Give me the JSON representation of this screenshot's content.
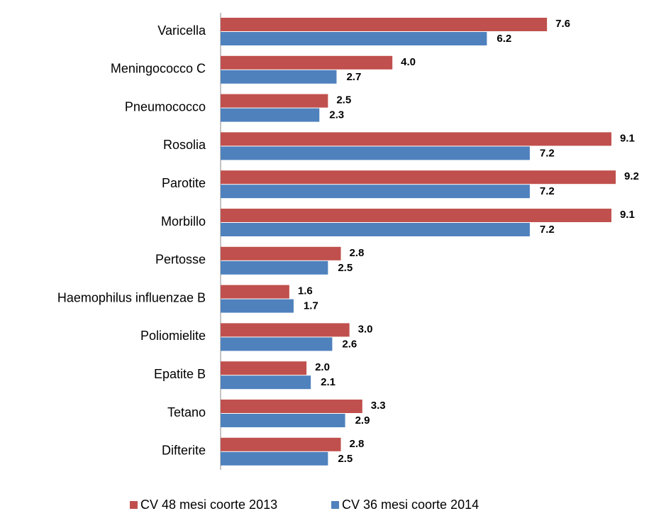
{
  "chart_data": {
    "type": "bar",
    "orientation": "horizontal",
    "categories": [
      "Varicella",
      "Meningococco C",
      "Pneumococco",
      "Rosolia",
      "Parotite",
      "Morbillo",
      "Pertosse",
      "Haemophilus influenzae B",
      "Poliomielite",
      "Epatite B",
      "Tetano",
      "Difterite"
    ],
    "series": [
      {
        "name": "CV 48 mesi coorte 2013",
        "color": "#c0504d",
        "values": [
          7.6,
          4.0,
          2.5,
          9.1,
          9.2,
          9.1,
          2.8,
          1.6,
          3.0,
          2.0,
          3.3,
          2.8
        ],
        "value_labels": [
          "7.6",
          "4.0",
          "2.5",
          "9.1",
          "9.2",
          "9.1",
          "2.8",
          "1.6",
          "3.0",
          "2.0",
          "3.3",
          "2.8"
        ]
      },
      {
        "name": "CV 36 mesi coorte 2014",
        "color": "#4f81bd",
        "values": [
          6.2,
          2.7,
          2.3,
          7.2,
          7.2,
          7.2,
          2.5,
          1.7,
          2.6,
          2.1,
          2.9,
          2.5
        ],
        "value_labels": [
          "6.2",
          "2.7",
          "2.3",
          "7.2",
          "7.2",
          "7.2",
          "2.5",
          "1.7",
          "2.6",
          "2.1",
          "2.9",
          "2.5"
        ]
      }
    ],
    "legend": "bottom"
  }
}
